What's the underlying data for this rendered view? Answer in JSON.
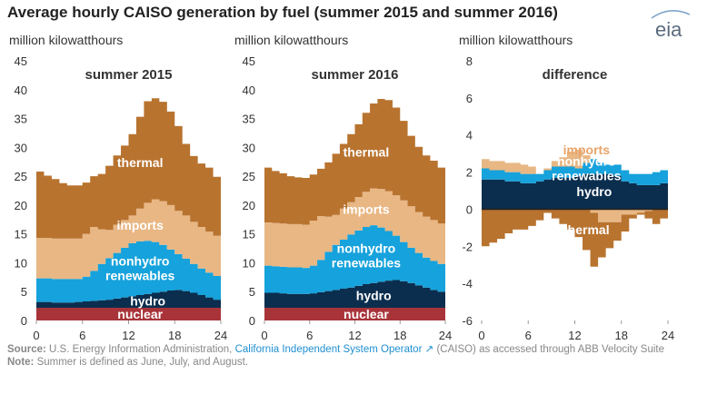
{
  "title": "Average hourly CAISO generation by fuel (summer 2015 and summer 2016)",
  "logo_text": "eia",
  "colors": {
    "nuclear": "#a8343a",
    "hydro": "#0b2e4e",
    "renewables": "#16a2dc",
    "imports": "#e8b784",
    "thermal": "#b8732f",
    "axis_text": "#333333"
  },
  "footer": {
    "source_label": "Source:",
    "source_text_1": " U.S. Energy Information Administration, ",
    "source_link": "California Independent System Operator",
    "source_text_2": " (CAISO) as accessed through ABB Velocity Suite",
    "note_label": "Note:",
    "note_text": " Summer is defined as June, July, and August."
  },
  "chart_data": [
    {
      "type": "area",
      "title": "summer 2015",
      "ylabel": "million kilowatthours",
      "xlim": [
        0,
        24
      ],
      "ylim": [
        0,
        45
      ],
      "xticks": [
        "0",
        "6",
        "12",
        "18",
        "24"
      ],
      "yticks": [
        "0",
        "5",
        "10",
        "15",
        "20",
        "25",
        "30",
        "35",
        "40",
        "45"
      ],
      "stack_order": [
        "nuclear",
        "hydro",
        "nonhydro renewables",
        "imports",
        "thermal"
      ],
      "labels": [
        "nuclear",
        "hydro",
        "nonhydro\nrenewables",
        "imports",
        "thermal"
      ],
      "x": [
        1,
        2,
        3,
        4,
        5,
        6,
        7,
        8,
        9,
        10,
        11,
        12,
        13,
        14,
        15,
        16,
        17,
        18,
        19,
        20,
        21,
        22,
        23,
        24
      ],
      "series": [
        {
          "name": "nuclear",
          "values": [
            2.2,
            2.2,
            2.2,
            2.2,
            2.2,
            2.2,
            2.2,
            2.2,
            2.2,
            2.2,
            2.2,
            2.2,
            2.2,
            2.2,
            2.2,
            2.2,
            2.2,
            2.2,
            2.2,
            2.2,
            2.2,
            2.2,
            2.2,
            2.2
          ]
        },
        {
          "name": "hydro",
          "values": [
            1.0,
            1.0,
            0.9,
            0.9,
            0.9,
            1.0,
            1.1,
            1.2,
            1.3,
            1.4,
            1.6,
            1.8,
            2.0,
            2.2,
            2.4,
            2.6,
            2.8,
            3.0,
            3.1,
            2.9,
            2.6,
            2.2,
            1.8,
            1.4
          ]
        },
        {
          "name": "nonhydro renewables",
          "values": [
            4.1,
            4.1,
            4.1,
            4.1,
            4.1,
            4.0,
            4.3,
            5.2,
            6.3,
            7.2,
            7.9,
            8.6,
            9.2,
            9.3,
            9.2,
            8.8,
            8.1,
            7.1,
            6.2,
            5.6,
            5.0,
            4.6,
            4.3,
            4.1
          ]
        },
        {
          "name": "imports",
          "values": [
            7.0,
            7.0,
            7.0,
            7.0,
            7.0,
            7.0,
            7.4,
            7.6,
            6.0,
            4.9,
            4.9,
            4.8,
            4.8,
            5.7,
            6.6,
            7.4,
            7.6,
            7.7,
            7.5,
            7.5,
            7.3,
            7.2,
            7.1,
            7.0
          ]
        },
        {
          "name": "thermal",
          "values": [
            11.5,
            10.8,
            10.3,
            9.6,
            9.2,
            9.2,
            8.9,
            8.8,
            9.6,
            11.1,
            12.0,
            12.9,
            14.1,
            15.9,
            17.6,
            17.5,
            17.2,
            16.2,
            14.7,
            12.4,
            11.4,
            11.0,
            11.1,
            10.2
          ]
        }
      ]
    },
    {
      "type": "area",
      "title": "summer 2016",
      "ylabel": "million kilowatthours",
      "xlim": [
        0,
        24
      ],
      "ylim": [
        0,
        45
      ],
      "xticks": [
        "0",
        "6",
        "12",
        "18",
        "24"
      ],
      "yticks": [
        "0",
        "5",
        "10",
        "15",
        "20",
        "25",
        "30",
        "35",
        "40",
        "45"
      ],
      "stack_order": [
        "nuclear",
        "hydro",
        "nonhydro renewables",
        "imports",
        "thermal"
      ],
      "labels": [
        "nuclear",
        "hydro",
        "nonhydro\nrenewables",
        "imports",
        "thermal"
      ],
      "x": [
        1,
        2,
        3,
        4,
        5,
        6,
        7,
        8,
        9,
        10,
        11,
        12,
        13,
        14,
        15,
        16,
        17,
        18,
        19,
        20,
        21,
        22,
        23,
        24
      ],
      "series": [
        {
          "name": "nuclear",
          "values": [
            2.2,
            2.2,
            2.2,
            2.2,
            2.2,
            2.2,
            2.2,
            2.2,
            2.2,
            2.2,
            2.2,
            2.2,
            2.2,
            2.2,
            2.2,
            2.2,
            2.2,
            2.2,
            2.2,
            2.2,
            2.2,
            2.2,
            2.2,
            2.2
          ]
        },
        {
          "name": "hydro",
          "values": [
            2.6,
            2.6,
            2.5,
            2.4,
            2.4,
            2.4,
            2.5,
            2.7,
            2.9,
            3.1,
            3.3,
            3.5,
            3.8,
            4.1,
            4.3,
            4.5,
            4.7,
            4.8,
            4.6,
            4.3,
            3.9,
            3.5,
            3.1,
            2.8
          ]
        },
        {
          "name": "nonhydro renewables",
          "values": [
            4.7,
            4.6,
            4.6,
            4.6,
            4.6,
            4.5,
            4.8,
            5.6,
            6.8,
            7.8,
            8.5,
            9.2,
            9.6,
            9.9,
            10.0,
            9.4,
            8.6,
            7.7,
            6.8,
            6.1,
            5.6,
            5.2,
            5.0,
            4.8
          ]
        },
        {
          "name": "imports",
          "values": [
            7.5,
            7.5,
            7.5,
            7.5,
            7.5,
            7.5,
            7.8,
            7.6,
            6.1,
            5.2,
            5.4,
            5.6,
            5.8,
            6.1,
            6.4,
            6.7,
            6.9,
            7.0,
            7.2,
            7.2,
            7.1,
            7.1,
            7.1,
            7.0
          ]
        },
        {
          "name": "thermal",
          "values": [
            9.5,
            9.0,
            8.7,
            8.3,
            8.1,
            8.1,
            8.0,
            8.2,
            9.4,
            10.6,
            11.2,
            11.8,
            12.6,
            13.7,
            14.7,
            15.6,
            15.8,
            15.2,
            13.8,
            12.2,
            11.3,
            10.6,
            10.3,
            9.7
          ]
        }
      ]
    },
    {
      "type": "area",
      "title": "difference",
      "ylabel": "million kilowatthours",
      "xlim": [
        0,
        24
      ],
      "ylim": [
        -6,
        8
      ],
      "xticks": [
        "0",
        "6",
        "12",
        "18",
        "24"
      ],
      "yticks": [
        "-6",
        "-4",
        "-2",
        "0",
        "2",
        "4",
        "6",
        "8"
      ],
      "stack_order": [
        "hydro",
        "nonhydro renewables",
        "imports",
        "thermal"
      ],
      "labels": [
        "hydro",
        "nonhydro\nrenewables",
        "imports",
        "thermal"
      ],
      "x": [
        1,
        2,
        3,
        4,
        5,
        6,
        7,
        8,
        9,
        10,
        11,
        12,
        13,
        14,
        15,
        16,
        17,
        18,
        19,
        20,
        21,
        22,
        23,
        24
      ],
      "series": [
        {
          "name": "hydro",
          "values": [
            1.6,
            1.6,
            1.6,
            1.5,
            1.5,
            1.4,
            1.4,
            1.5,
            1.6,
            1.7,
            1.7,
            1.7,
            1.8,
            1.9,
            1.9,
            1.9,
            1.9,
            1.8,
            1.5,
            1.4,
            1.3,
            1.3,
            1.3,
            1.4
          ]
        },
        {
          "name": "nonhydro renewables",
          "values": [
            0.6,
            0.5,
            0.5,
            0.5,
            0.5,
            0.5,
            0.5,
            0.4,
            0.5,
            0.6,
            0.6,
            0.6,
            0.4,
            0.6,
            0.8,
            0.6,
            0.5,
            0.6,
            0.6,
            0.5,
            0.6,
            0.6,
            0.7,
            0.7
          ]
        },
        {
          "name": "imports",
          "values": [
            0.5,
            0.5,
            0.5,
            0.5,
            0.5,
            0.5,
            0.4,
            0.0,
            0.1,
            0.3,
            0.5,
            0.8,
            1.0,
            0.4,
            -0.2,
            -0.7,
            -0.7,
            -0.7,
            -0.3,
            -0.3,
            -0.2,
            -0.1,
            0.0,
            0.0
          ]
        },
        {
          "name": "thermal",
          "values": [
            -2.0,
            -1.8,
            -1.6,
            -1.3,
            -1.1,
            -1.1,
            -0.9,
            -0.6,
            -0.2,
            -0.5,
            -0.8,
            -1.1,
            -1.5,
            -2.2,
            -2.9,
            -1.9,
            -1.4,
            -1.0,
            -0.9,
            -0.2,
            -0.1,
            -0.4,
            -0.8,
            -0.5
          ]
        }
      ]
    }
  ]
}
